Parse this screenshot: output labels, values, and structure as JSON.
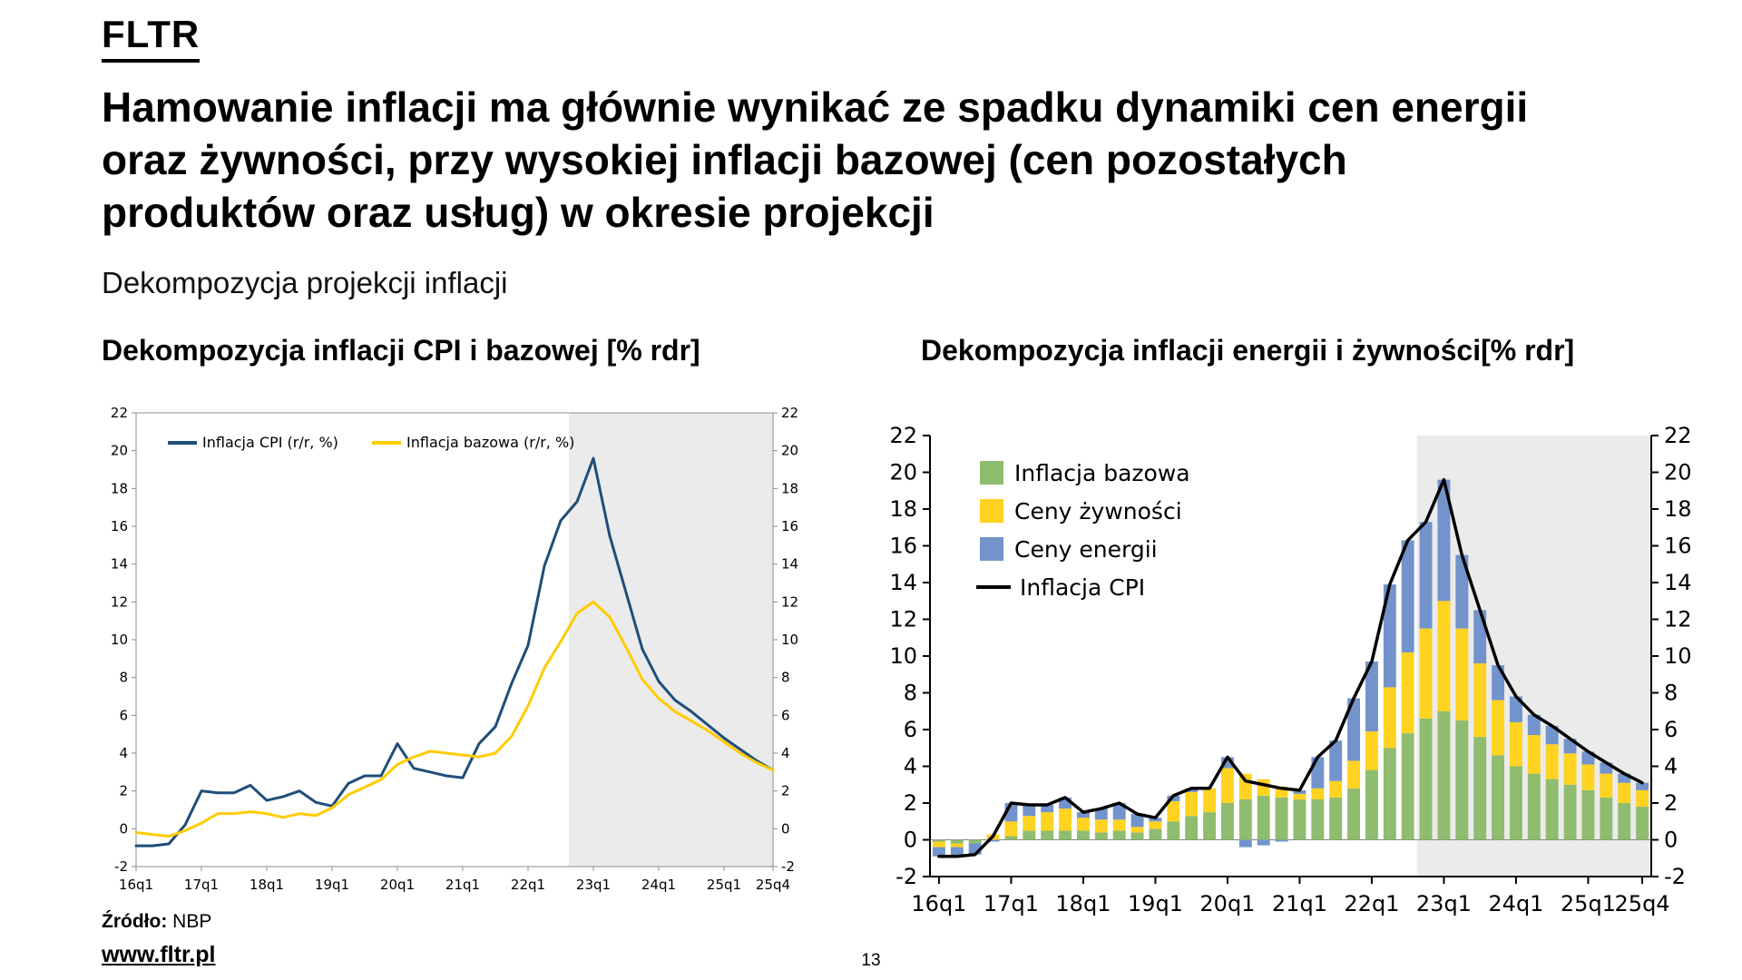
{
  "logo": "FLTR",
  "title_lines": [
    "Hamowanie inflacji ma głównie wynikać ze spadku dynamiki cen energii",
    "oraz żywności, przy wysokiej inflacji bazowej (cen pozostałych",
    "produktów oraz usług) w okresie projekcji"
  ],
  "subtitle": "Dekompozycja projekcji inflacji",
  "footer": {
    "source_label": "Źródło:",
    "source_value": "NBP",
    "website": "www.fltr.pl",
    "page_number": "13"
  },
  "colors": {
    "cpi_line_left": "#1F4E79",
    "core_line_left": "#FFCC00",
    "core_bar": "#8FBC6F",
    "food_bar": "#FFD320",
    "energy_bar": "#7293CB",
    "cpi_line_right": "#000000",
    "projection_shade": "#EBEBEB"
  },
  "chart_data": [
    {
      "type": "line",
      "title": "Dekompozycja inflacji CPI i bazowej [% rdr]",
      "ylim": [
        -2,
        22
      ],
      "y_tick_step": 2,
      "grid": false,
      "legend_position": "top-left",
      "projection_start_index": 27,
      "x": [
        "16q1",
        "16q2",
        "16q3",
        "16q4",
        "17q1",
        "17q2",
        "17q3",
        "17q4",
        "18q1",
        "18q2",
        "18q3",
        "18q4",
        "19q1",
        "19q2",
        "19q3",
        "19q4",
        "20q1",
        "20q2",
        "20q3",
        "20q4",
        "21q1",
        "21q2",
        "21q3",
        "21q4",
        "22q1",
        "22q2",
        "22q3",
        "22q4",
        "23q1",
        "23q2",
        "23q3",
        "23q4",
        "24q1",
        "24q2",
        "24q3",
        "24q4",
        "25q1",
        "25q2",
        "25q3",
        "25q4"
      ],
      "x_tick_labels": [
        "16q1",
        "17q1",
        "18q1",
        "19q1",
        "20q1",
        "21q1",
        "22q1",
        "23q1",
        "24q1",
        "25q1",
        "25q4"
      ],
      "series": [
        {
          "name": "Inflacja CPI (r/r, %)",
          "color": "#1F4E79",
          "values": [
            -0.9,
            -0.9,
            -0.8,
            0.2,
            2.0,
            1.9,
            1.9,
            2.3,
            1.5,
            1.7,
            2.0,
            1.4,
            1.2,
            2.4,
            2.8,
            2.8,
            4.5,
            3.2,
            3.0,
            2.8,
            2.7,
            4.5,
            5.4,
            7.7,
            9.7,
            13.9,
            16.3,
            17.3,
            19.6,
            15.5,
            12.5,
            9.5,
            7.8,
            6.8,
            6.2,
            5.5,
            4.8,
            4.2,
            3.6,
            3.1
          ]
        },
        {
          "name": "Inflacja bazowa (r/r, %)",
          "color": "#FFCC00",
          "values": [
            -0.2,
            -0.3,
            -0.4,
            -0.1,
            0.3,
            0.8,
            0.8,
            0.9,
            0.8,
            0.6,
            0.8,
            0.7,
            1.1,
            1.8,
            2.2,
            2.6,
            3.4,
            3.8,
            4.1,
            4.0,
            3.9,
            3.8,
            4.0,
            4.9,
            6.5,
            8.5,
            9.9,
            11.4,
            12.0,
            11.2,
            9.6,
            7.9,
            6.9,
            6.2,
            5.7,
            5.2,
            4.6,
            4.0,
            3.5,
            3.1
          ]
        }
      ]
    },
    {
      "type": "bar",
      "subtype": "stacked-bars-with-line",
      "title": "Dekompozycja inflacji energii i żywności[% rdr]",
      "ylim": [
        -2,
        22
      ],
      "y_tick_step": 2,
      "grid": false,
      "legend_position": "top-left",
      "projection_start_index": 27,
      "x": [
        "16q1",
        "16q2",
        "16q3",
        "16q4",
        "17q1",
        "17q2",
        "17q3",
        "17q4",
        "18q1",
        "18q2",
        "18q3",
        "18q4",
        "19q1",
        "19q2",
        "19q3",
        "19q4",
        "20q1",
        "20q2",
        "20q3",
        "20q4",
        "21q1",
        "21q2",
        "21q3",
        "21q4",
        "22q1",
        "22q2",
        "22q3",
        "22q4",
        "23q1",
        "23q2",
        "23q3",
        "23q4",
        "24q1",
        "24q2",
        "24q3",
        "24q4",
        "25q1",
        "25q2",
        "25q3",
        "25q4"
      ],
      "x_tick_labels": [
        "16q1",
        "17q1",
        "18q1",
        "19q1",
        "20q1",
        "21q1",
        "22q1",
        "23q1",
        "24q1",
        "25q1",
        "25q4"
      ],
      "bar_series": [
        {
          "name": "Inflacja bazowa",
          "color": "#8FBC6F",
          "values": [
            -0.1,
            -0.2,
            -0.2,
            0.0,
            0.2,
            0.5,
            0.5,
            0.5,
            0.5,
            0.4,
            0.5,
            0.4,
            0.6,
            1.0,
            1.3,
            1.5,
            2.0,
            2.2,
            2.4,
            2.3,
            2.2,
            2.2,
            2.3,
            2.8,
            3.8,
            5.0,
            5.8,
            6.6,
            7.0,
            6.5,
            5.6,
            4.6,
            4.0,
            3.6,
            3.3,
            3.0,
            2.7,
            2.3,
            2.0,
            1.8
          ]
        },
        {
          "name": "Ceny żywności",
          "color": "#FFD320",
          "values": [
            -0.3,
            -0.2,
            0.0,
            0.3,
            0.8,
            0.8,
            1.0,
            1.2,
            0.7,
            0.7,
            0.6,
            0.3,
            0.4,
            1.1,
            1.3,
            1.3,
            1.9,
            1.4,
            0.9,
            0.6,
            0.3,
            0.6,
            0.9,
            1.5,
            2.1,
            3.3,
            4.4,
            4.9,
            6.0,
            5.0,
            4.0,
            3.0,
            2.4,
            2.1,
            1.9,
            1.7,
            1.4,
            1.3,
            1.1,
            0.9
          ]
        },
        {
          "name": "Ceny energii",
          "color": "#7293CB",
          "values": [
            -0.5,
            -0.5,
            -0.6,
            -0.1,
            1.0,
            0.6,
            0.4,
            0.6,
            0.3,
            0.6,
            0.9,
            0.7,
            0.2,
            0.3,
            0.2,
            0.0,
            0.6,
            -0.4,
            -0.3,
            -0.1,
            0.2,
            1.7,
            2.2,
            3.4,
            3.8,
            5.6,
            6.1,
            5.8,
            6.6,
            4.0,
            2.9,
            1.9,
            1.4,
            1.1,
            1.0,
            0.8,
            0.7,
            0.6,
            0.5,
            0.4
          ]
        }
      ],
      "line_series": {
        "name": "Inflacja CPI",
        "color": "#000000",
        "values": [
          -0.9,
          -0.9,
          -0.8,
          0.2,
          2.0,
          1.9,
          1.9,
          2.3,
          1.5,
          1.7,
          2.0,
          1.4,
          1.2,
          2.4,
          2.8,
          2.8,
          4.5,
          3.2,
          3.0,
          2.8,
          2.7,
          4.5,
          5.4,
          7.7,
          9.7,
          13.9,
          16.3,
          17.3,
          19.6,
          15.5,
          12.5,
          9.5,
          7.8,
          6.8,
          6.2,
          5.5,
          4.8,
          4.2,
          3.6,
          3.1
        ]
      }
    }
  ]
}
